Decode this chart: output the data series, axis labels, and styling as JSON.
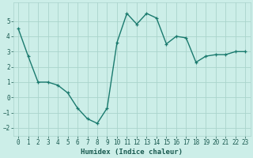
{
  "x": [
    0,
    1,
    2,
    3,
    4,
    5,
    6,
    7,
    8,
    9,
    10,
    11,
    12,
    13,
    14,
    15,
    16,
    17,
    18,
    19,
    20,
    21,
    22,
    23
  ],
  "y": [
    4.5,
    2.7,
    1.0,
    1.0,
    0.8,
    0.3,
    -0.7,
    -1.4,
    -1.7,
    -0.7,
    3.6,
    5.5,
    4.8,
    5.5,
    5.2,
    3.5,
    4.0,
    3.9,
    2.3,
    2.7,
    2.8,
    2.8,
    3.0,
    3.0
  ],
  "line_color": "#1a7a6e",
  "marker": "+",
  "marker_size": 3,
  "xlabel": "Humidex (Indice chaleur)",
  "xlim": [
    -0.5,
    23.5
  ],
  "ylim": [
    -2.5,
    6.2
  ],
  "yticks": [
    -2,
    -1,
    0,
    1,
    2,
    3,
    4,
    5
  ],
  "xticks": [
    0,
    1,
    2,
    3,
    4,
    5,
    6,
    7,
    8,
    9,
    10,
    11,
    12,
    13,
    14,
    15,
    16,
    17,
    18,
    19,
    20,
    21,
    22,
    23
  ],
  "bg_color": "#cceee8",
  "grid_color": "#aad4cc",
  "font_color": "#1a5a50",
  "tick_fontsize": 5.5,
  "xlabel_fontsize": 6.5,
  "linewidth": 1.0,
  "markeredgewidth": 0.9
}
